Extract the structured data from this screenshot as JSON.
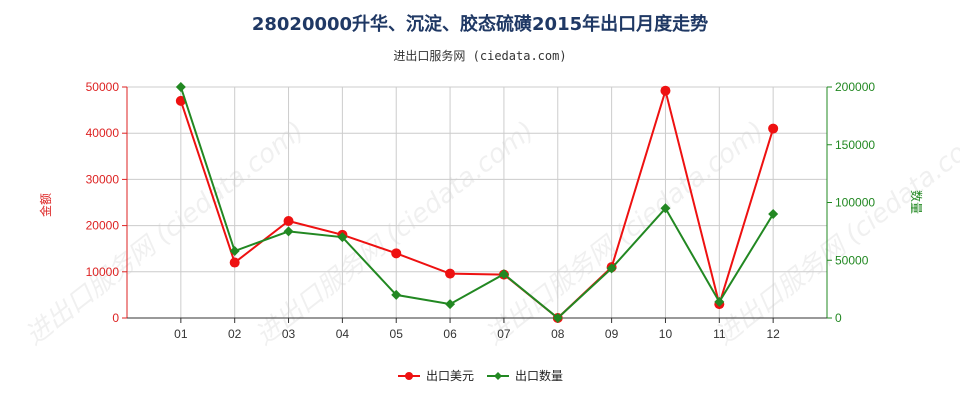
{
  "chart_data": {
    "type": "line",
    "title": "28020000升华、沉淀、胶态硫磺2015年出口月度走势",
    "subtitle": "进出口服务网 (ciedata.com)",
    "watermark": "进出口服务网 (ciedata.com)",
    "categories": [
      "01",
      "02",
      "03",
      "04",
      "05",
      "06",
      "07",
      "08",
      "09",
      "10",
      "11",
      "12"
    ],
    "y_left": {
      "label": "金额",
      "lim": [
        0,
        50000
      ],
      "ticks": [
        "0",
        "10000",
        "20000",
        "30000",
        "40000",
        "50000"
      ],
      "color": "#dd2222"
    },
    "y_right": {
      "label": "数量",
      "lim": [
        0,
        200000
      ],
      "ticks": [
        "0",
        "50000",
        "100000",
        "150000",
        "200000"
      ],
      "color": "#228822"
    },
    "series": [
      {
        "name": "出口美元",
        "axis": "left",
        "color": "#ee1111",
        "values": [
          47000,
          12000,
          21000,
          18000,
          14000,
          9600,
          9400,
          0,
          11000,
          49200,
          3000,
          41000
        ]
      },
      {
        "name": "出口数量",
        "axis": "right",
        "color": "#228822",
        "values": [
          200000,
          58000,
          75000,
          70000,
          20000,
          12000,
          38000,
          0,
          43000,
          95000,
          14000,
          90000
        ]
      }
    ],
    "grid": true,
    "legend_position": "bottom-center"
  }
}
